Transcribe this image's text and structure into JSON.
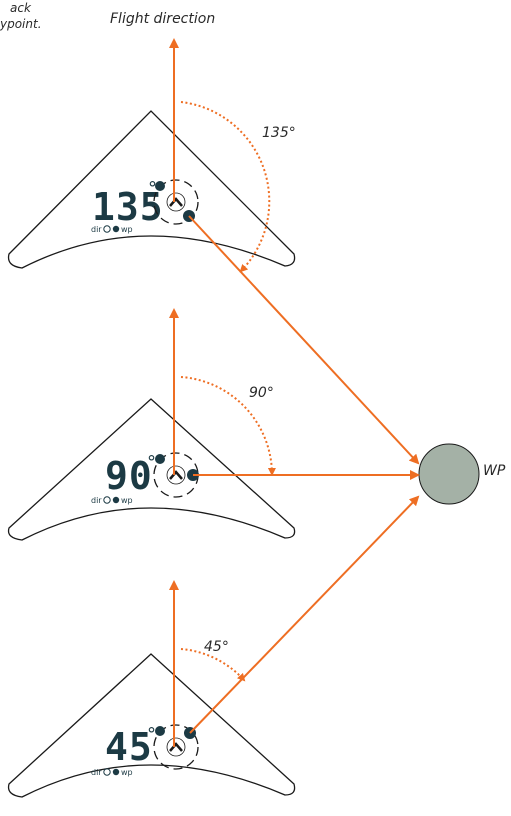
{
  "colors": {
    "arrow": "#ee6e23",
    "wp_fill": "#a4b1a6",
    "outline": "#1a1a1a",
    "display": "#1c3a44"
  },
  "header": {
    "title": "Flight direction",
    "partial_note_line1": "ack",
    "partial_note_line2": "ypoint."
  },
  "waypoint": {
    "label": "WP"
  },
  "instruments": [
    {
      "readout": "135",
      "degree_symbol": "°",
      "angle_label": "135°",
      "legend_dir": "dir",
      "legend_wp": "wp"
    },
    {
      "readout": "90",
      "degree_symbol": "°",
      "angle_label": "90°",
      "legend_dir": "dir",
      "legend_wp": "wp"
    },
    {
      "readout": "45",
      "degree_symbol": "°",
      "angle_label": "45°",
      "legend_dir": "dir",
      "legend_wp": "wp"
    }
  ]
}
